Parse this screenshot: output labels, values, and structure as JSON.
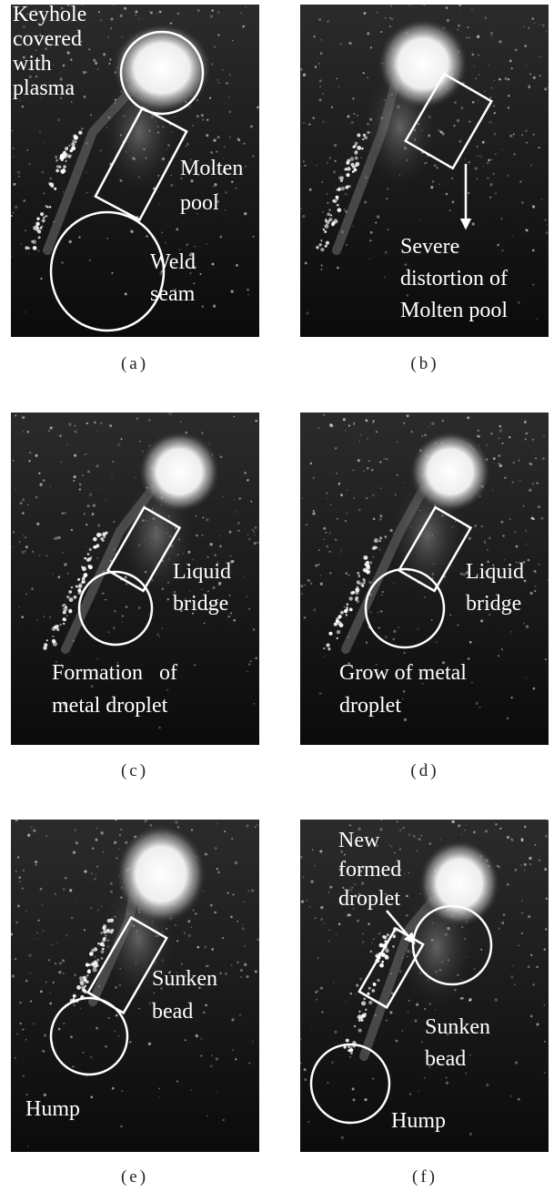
{
  "panels": [
    {
      "caption": "(a)",
      "annotations": [
        [
          "Keyhole",
          "covered",
          "with",
          "plasma"
        ],
        [
          "Molten",
          "pool"
        ],
        [
          "Weld",
          "seam"
        ]
      ]
    },
    {
      "caption": "(b)",
      "annotations": [
        [
          "Severe",
          "distortion of",
          "Molten pool"
        ]
      ]
    },
    {
      "caption": "(c)",
      "annotations": [
        [
          "Liquid",
          "bridge"
        ],
        [
          "Formation   of",
          "metal droplet"
        ]
      ]
    },
    {
      "caption": "(d)",
      "annotations": [
        [
          "Liquid",
          "bridge"
        ],
        [
          "Grow of metal",
          "droplet"
        ]
      ]
    },
    {
      "caption": "(e)",
      "annotations": [
        [
          "Sunken",
          "bead"
        ],
        [
          "Hump"
        ]
      ]
    },
    {
      "caption": "(f)",
      "annotations": [
        [
          "New",
          "formed",
          "droplet"
        ],
        [
          "Sunken",
          "bead"
        ],
        [
          "Hump"
        ]
      ]
    }
  ]
}
